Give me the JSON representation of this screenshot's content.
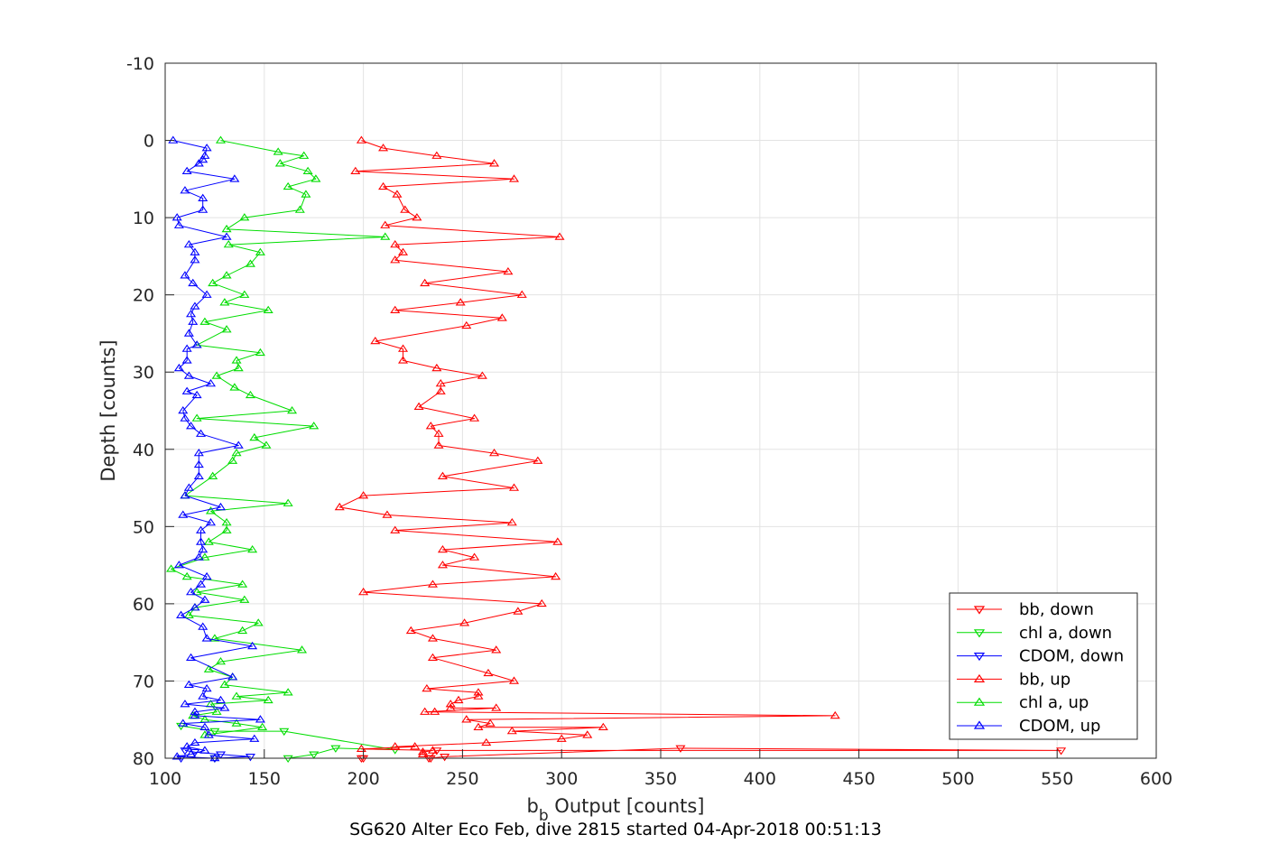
{
  "chart_data": {
    "type": "line",
    "title": "",
    "caption": "SG620 Alter Eco Feb, dive 2815 started 04-Apr-2018 00:51:13",
    "xlabel_main": "b",
    "xlabel_sub": "b",
    "xlabel_rest": " Output [counts]",
    "ylabel": "Depth [counts]",
    "xlim": [
      100,
      600
    ],
    "ylim": [
      -10,
      80
    ],
    "y_reversed": true,
    "grid": true,
    "legend_position": "bottom-right",
    "x_ticks": [
      "100",
      "150",
      "200",
      "250",
      "300",
      "350",
      "400",
      "450",
      "500",
      "550",
      "600"
    ],
    "y_ticks": [
      "-10",
      "0",
      "10",
      "20",
      "30",
      "40",
      "50",
      "60",
      "70",
      "80"
    ],
    "series": [
      {
        "name": "bb, down",
        "color": "#ff0000",
        "marker": "triangle-down",
        "x": [
          200,
          233,
          237,
          552,
          360,
          241,
          234,
          199
        ],
        "y": [
          80.0,
          80.0,
          79.0,
          79.0,
          78.7,
          79.8,
          80.0,
          80.0
        ]
      },
      {
        "name": "chl a, down",
        "color": "#00dd00",
        "marker": "triangle-down",
        "x": [
          125,
          162,
          175,
          186,
          216,
          160,
          125,
          108
        ],
        "y": [
          80.0,
          80.0,
          79.5,
          78.7,
          78.9,
          76.5,
          76.5,
          75.8
        ]
      },
      {
        "name": "CDOM, down",
        "color": "#0000ff",
        "marker": "triangle-down",
        "x": [
          108,
          125,
          143,
          128,
          115,
          110
        ],
        "y": [
          80.0,
          80.0,
          79.8,
          79.5,
          79.2,
          79.0
        ]
      },
      {
        "name": "bb, up",
        "color": "#ff0000",
        "marker": "triangle-up",
        "x": [
          199,
          210,
          237,
          266,
          196,
          276,
          210,
          217,
          221,
          227,
          211,
          299,
          216,
          220,
          216,
          273,
          231,
          280,
          249,
          216,
          270,
          252,
          206,
          220,
          220,
          237,
          260,
          239,
          239,
          228,
          256,
          234,
          238,
          238,
          266,
          288,
          240,
          276,
          200,
          188,
          212,
          275,
          216,
          298,
          240,
          256,
          240,
          297,
          235,
          200,
          290,
          278,
          251,
          224,
          235,
          267,
          235,
          263,
          276,
          232,
          258,
          258,
          248,
          244,
          244,
          267,
          231,
          236,
          438,
          252,
          264,
          258,
          321,
          275,
          313,
          300,
          262,
          216,
          226,
          199,
          235,
          230,
          230
        ],
        "y": [
          0,
          1,
          2,
          3,
          4,
          5,
          6,
          7,
          9,
          10,
          11,
          12.5,
          13.5,
          14.5,
          15.5,
          17,
          18.5,
          20,
          21,
          22,
          23,
          24,
          26,
          27,
          28.5,
          29.5,
          30.5,
          31.5,
          32.5,
          34.5,
          36,
          37,
          38,
          39.5,
          40.5,
          41.5,
          43.5,
          45,
          46,
          47.5,
          48.5,
          49.5,
          50.5,
          52,
          53,
          54,
          55,
          56.5,
          57.5,
          58.5,
          60,
          61,
          62.5,
          63.5,
          64.5,
          66,
          67,
          69,
          70,
          71,
          71.5,
          72,
          72.5,
          73,
          73.5,
          73.5,
          74,
          74,
          74.5,
          75,
          75.5,
          76,
          76,
          76.5,
          77,
          77.5,
          78,
          78.5,
          78.5,
          78.8,
          79.0,
          79.2,
          79.5
        ]
      },
      {
        "name": "chl a, up",
        "color": "#00dd00",
        "marker": "triangle-up",
        "x": [
          128,
          157,
          170,
          158,
          172,
          176,
          162,
          171,
          168,
          140,
          131,
          211,
          132,
          148,
          143,
          131,
          124,
          140,
          130,
          152,
          120,
          131,
          116,
          148,
          136,
          137,
          126,
          135,
          143,
          164,
          116,
          175,
          145,
          151,
          136,
          134,
          124,
          110,
          162,
          123,
          131,
          131,
          122,
          144,
          120,
          103,
          111,
          139,
          116,
          140,
          115,
          112,
          147,
          139,
          125,
          169,
          128,
          122,
          134,
          130,
          162,
          136,
          152,
          123,
          126,
          114,
          120,
          136,
          149,
          120
        ],
        "y": [
          0,
          1.5,
          2,
          3,
          4,
          5,
          6,
          7,
          9,
          10,
          11.5,
          12.5,
          13.5,
          14.5,
          16,
          17.5,
          18.5,
          20,
          21,
          22,
          23.5,
          24.5,
          26.5,
          27.5,
          28.5,
          29.5,
          30.5,
          32,
          33,
          35,
          36,
          37,
          38.5,
          39.5,
          40.5,
          41.5,
          43.5,
          46,
          47,
          48,
          49.5,
          50.5,
          52,
          53,
          54,
          55.5,
          56.5,
          57.5,
          58.5,
          59.5,
          60.5,
          61.5,
          62.5,
          63.5,
          64.5,
          66,
          67.5,
          68.5,
          69.5,
          70.5,
          71.5,
          72,
          72.5,
          73,
          74,
          74.5,
          75,
          75.5,
          76,
          77
        ]
      },
      {
        "name": "CDOM, up",
        "color": "#0000ff",
        "marker": "triangle-up",
        "x": [
          104,
          121,
          120,
          119,
          117,
          111,
          135,
          110,
          119,
          119,
          106,
          107,
          131,
          112,
          115,
          115,
          110,
          114,
          121,
          115,
          113,
          114,
          112,
          116,
          111,
          111,
          107,
          112,
          123,
          111,
          116,
          109,
          110,
          113,
          118,
          137,
          117,
          117,
          117,
          112,
          110,
          128,
          109,
          123,
          118,
          118,
          119,
          117,
          107,
          121,
          118,
          113,
          120,
          115,
          108,
          119,
          121,
          144,
          113,
          134,
          112,
          121,
          119,
          128,
          110,
          130,
          115,
          115,
          148,
          109,
          120,
          122,
          145,
          115,
          111,
          120,
          113,
          106,
          125
        ],
        "y": [
          0,
          1,
          2,
          2.5,
          3,
          4,
          5,
          6.5,
          7.5,
          9,
          10,
          11,
          12.5,
          13.5,
          14.5,
          15.5,
          17.5,
          18.5,
          20,
          21.5,
          22.5,
          23.5,
          25,
          26.5,
          27,
          28.5,
          29.5,
          30.5,
          31.5,
          32.5,
          33,
          35,
          36,
          37,
          38,
          39.5,
          40.5,
          42,
          43.5,
          45,
          46,
          47.5,
          48.5,
          49.5,
          50.5,
          52,
          53,
          54,
          55,
          56.5,
          57.5,
          58.5,
          59.5,
          60.5,
          61.5,
          63,
          64.5,
          65.5,
          67,
          69.5,
          70.5,
          71,
          72,
          72.5,
          73,
          73.5,
          74,
          74.5,
          75,
          75.5,
          76,
          77,
          77.5,
          78,
          78.5,
          79,
          79.5,
          79.8,
          80
        ]
      }
    ]
  }
}
